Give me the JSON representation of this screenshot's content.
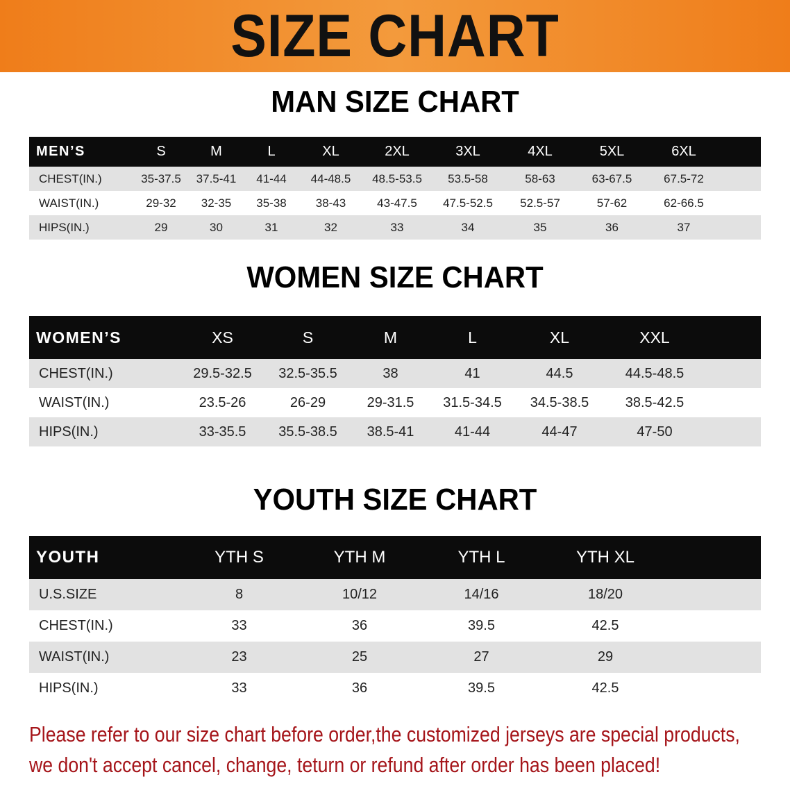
{
  "banner_title": "SIZE CHART",
  "colors": {
    "banner": "#ef7d1a",
    "table_header": "#0c0c0c",
    "row_shade": "#e2e2e2",
    "notice": "#a5151a"
  },
  "men": {
    "title": "MAN SIZE CHART",
    "header": "MEN’S",
    "sizes": [
      "S",
      "M",
      "L",
      "XL",
      "2XL",
      "3XL",
      "4XL",
      "5XL",
      "6XL"
    ],
    "rows": [
      {
        "label": "CHEST(IN.)",
        "values": [
          "35-37.5",
          "37.5-41",
          "41-44",
          "44-48.5",
          "48.5-53.5",
          "53.5-58",
          "58-63",
          "63-67.5",
          "67.5-72"
        ]
      },
      {
        "label": "WAIST(IN.)",
        "values": [
          "29-32",
          "32-35",
          "35-38",
          "38-43",
          "43-47.5",
          "47.5-52.5",
          "52.5-57",
          "57-62",
          "62-66.5"
        ]
      },
      {
        "label": "HIPS(IN.)",
        "values": [
          "29",
          "30",
          "31",
          "32",
          "33",
          "34",
          "35",
          "36",
          "37"
        ]
      }
    ]
  },
  "women": {
    "title": "WOMEN SIZE CHART",
    "header": "WOMEN’S",
    "sizes": [
      "XS",
      "S",
      "M",
      "L",
      "XL",
      "XXL"
    ],
    "rows": [
      {
        "label": "CHEST(IN.)",
        "values": [
          "29.5-32.5",
          "32.5-35.5",
          "38",
          "41",
          "44.5",
          "44.5-48.5"
        ]
      },
      {
        "label": "WAIST(IN.)",
        "values": [
          "23.5-26",
          "26-29",
          "29-31.5",
          "31.5-34.5",
          "34.5-38.5",
          "38.5-42.5"
        ]
      },
      {
        "label": "HIPS(IN.)",
        "values": [
          "33-35.5",
          "35.5-38.5",
          "38.5-41",
          "41-44",
          "44-47",
          "47-50"
        ]
      }
    ]
  },
  "youth": {
    "title": "YOUTH SIZE CHART",
    "header": "YOUTH",
    "sizes": [
      "YTH S",
      "YTH M",
      "YTH L",
      "YTH XL"
    ],
    "rows": [
      {
        "label": "U.S.SIZE",
        "values": [
          "8",
          "10/12",
          "14/16",
          "18/20"
        ]
      },
      {
        "label": "CHEST(IN.)",
        "values": [
          "33",
          "36",
          "39.5",
          "42.5"
        ]
      },
      {
        "label": "WAIST(IN.)",
        "values": [
          "23",
          "25",
          "27",
          "29"
        ]
      },
      {
        "label": "HIPS(IN.)",
        "values": [
          "33",
          "36",
          "39.5",
          "42.5"
        ]
      }
    ]
  },
  "notice": {
    "line1": "Please refer to our size chart before order,the customized jerseys are special products,",
    "line2": "we don't accept cancel, change, teturn or refund after order has been placed!"
  }
}
